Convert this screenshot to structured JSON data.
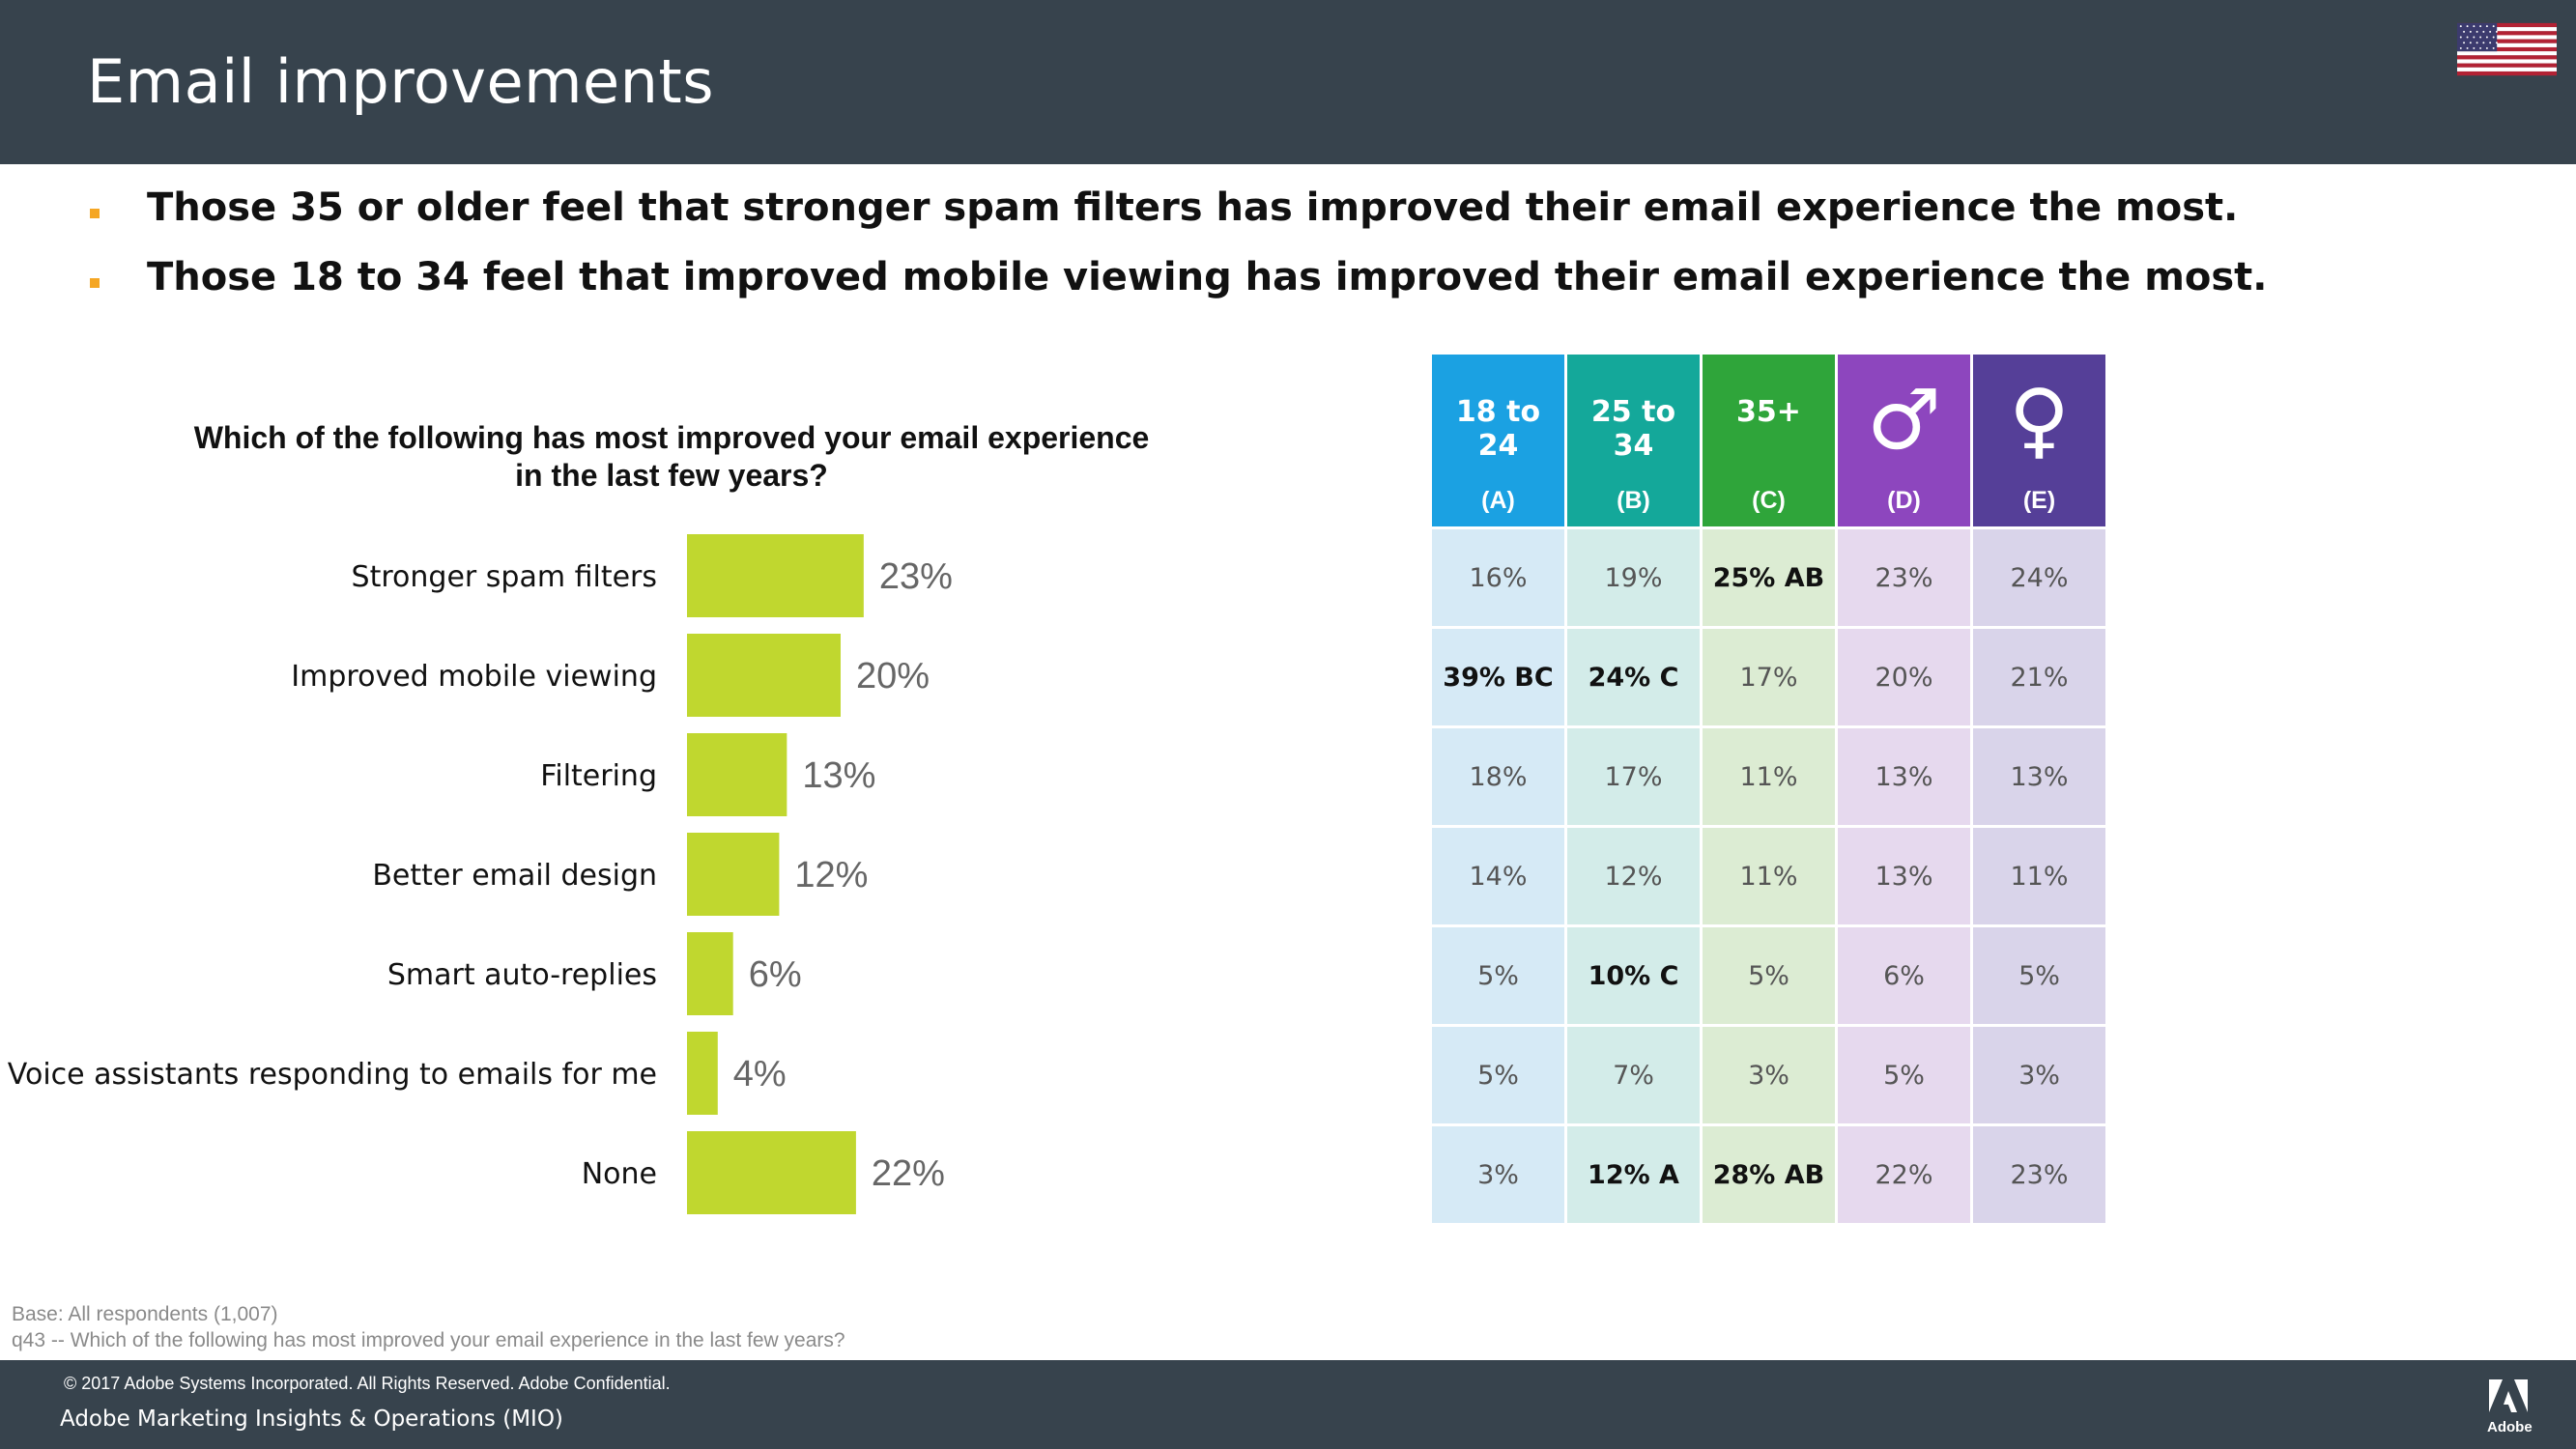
{
  "header": {
    "title": "Email improvements"
  },
  "bullets": [
    "Those 35 or older feel that stronger spam filters has improved their email experience the most.",
    "Those 18 to 34 feel that improved mobile viewing has improved their email experience the most."
  ],
  "colors": {
    "header_bg": "#37434d",
    "bar": "#c0d72f",
    "bullet": "#f5a623"
  },
  "chart_data": {
    "type": "bar",
    "orientation": "horizontal",
    "title": "Which of the following has most improved your email experience in the last few years?",
    "title_lines": [
      "Which of the following has most improved your email experience",
      "in the last few years?"
    ],
    "categories": [
      "Stronger spam filters",
      "Improved mobile viewing",
      "Filtering",
      "Better email design",
      "Smart auto-replies",
      "Voice assistants responding to emails for me",
      "None"
    ],
    "values": [
      23,
      20,
      13,
      12,
      6,
      4,
      22
    ],
    "value_labels": [
      "23%",
      "20%",
      "13%",
      "12%",
      "6%",
      "4%",
      "22%"
    ],
    "unit": "%",
    "xlim": [
      0,
      100
    ],
    "grid": false,
    "legend": "none"
  },
  "table": {
    "columns": [
      {
        "label": "18 to 24",
        "letter": "(A)",
        "header_color": "#1ba1e2",
        "cell_color": "#d6eaf6"
      },
      {
        "label": "25 to 34",
        "letter": "(B)",
        "header_color": "#14a89a",
        "cell_color": "#d3ece9"
      },
      {
        "label": "35+",
        "letter": "(C)",
        "header_color": "#2fa53a",
        "cell_color": "#dcecd3"
      },
      {
        "label": "",
        "icon": "male-symbol-icon",
        "symbol": "♂",
        "letter": "(D)",
        "header_color": "#8d46be",
        "cell_color": "#e6d9ee"
      },
      {
        "label": "",
        "icon": "female-symbol-icon",
        "symbol": "♀",
        "letter": "(E)",
        "header_color": "#553f98",
        "cell_color": "#d9d4ea"
      }
    ],
    "rows": [
      [
        "16%",
        "19%",
        "25% AB",
        "23%",
        "24%"
      ],
      [
        "39% BC",
        "24% C",
        "17%",
        "20%",
        "21%"
      ],
      [
        "18%",
        "17%",
        "11%",
        "13%",
        "13%"
      ],
      [
        "14%",
        "12%",
        "11%",
        "13%",
        "11%"
      ],
      [
        "5%",
        "10% C",
        "5%",
        "6%",
        "5%"
      ],
      [
        "5%",
        "7%",
        "3%",
        "5%",
        "3%"
      ],
      [
        "3%",
        "12% A",
        "28% AB",
        "22%",
        "23%"
      ]
    ],
    "significant": [
      [
        false,
        false,
        true,
        false,
        false
      ],
      [
        true,
        true,
        false,
        false,
        false
      ],
      [
        false,
        false,
        false,
        false,
        false
      ],
      [
        false,
        false,
        false,
        false,
        false
      ],
      [
        false,
        true,
        false,
        false,
        false
      ],
      [
        false,
        false,
        false,
        false,
        false
      ],
      [
        false,
        true,
        true,
        false,
        false
      ]
    ]
  },
  "footnote": {
    "base": "Base: All respondents (1,007)",
    "question": "q43 -- Which of the following has most improved your email experience in the last few years?"
  },
  "footer": {
    "copyright": "© 2017 Adobe Systems Incorporated.  All Rights Reserved.  Adobe Confidential.",
    "org": "Adobe Marketing Insights & Operations (MIO)",
    "logo_text": "Adobe"
  },
  "flag": {
    "icon": "us-flag-icon"
  }
}
